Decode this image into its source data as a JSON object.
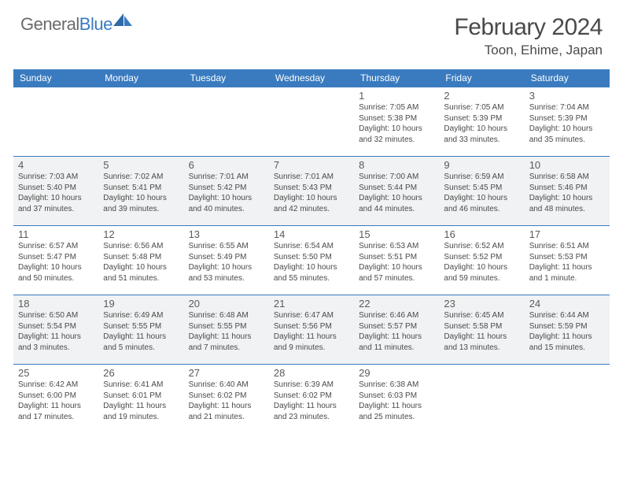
{
  "brand": {
    "general": "General",
    "blue": "Blue"
  },
  "title": {
    "month_year": "February 2024",
    "location": "Toon, Ehime, Japan"
  },
  "colors": {
    "header_bg": "#3a7bbf",
    "header_text": "#ffffff",
    "rule": "#3a7bbf",
    "shaded_bg": "#f1f2f3",
    "text": "#4a4a4a"
  },
  "day_headers": [
    "Sunday",
    "Monday",
    "Tuesday",
    "Wednesday",
    "Thursday",
    "Friday",
    "Saturday"
  ],
  "weeks": [
    {
      "shaded": false,
      "days": [
        null,
        null,
        null,
        null,
        {
          "n": "1",
          "sr": "Sunrise: 7:05 AM",
          "ss": "Sunset: 5:38 PM",
          "dl": "Daylight: 10 hours and 32 minutes."
        },
        {
          "n": "2",
          "sr": "Sunrise: 7:05 AM",
          "ss": "Sunset: 5:39 PM",
          "dl": "Daylight: 10 hours and 33 minutes."
        },
        {
          "n": "3",
          "sr": "Sunrise: 7:04 AM",
          "ss": "Sunset: 5:39 PM",
          "dl": "Daylight: 10 hours and 35 minutes."
        }
      ]
    },
    {
      "shaded": true,
      "days": [
        {
          "n": "4",
          "sr": "Sunrise: 7:03 AM",
          "ss": "Sunset: 5:40 PM",
          "dl": "Daylight: 10 hours and 37 minutes."
        },
        {
          "n": "5",
          "sr": "Sunrise: 7:02 AM",
          "ss": "Sunset: 5:41 PM",
          "dl": "Daylight: 10 hours and 39 minutes."
        },
        {
          "n": "6",
          "sr": "Sunrise: 7:01 AM",
          "ss": "Sunset: 5:42 PM",
          "dl": "Daylight: 10 hours and 40 minutes."
        },
        {
          "n": "7",
          "sr": "Sunrise: 7:01 AM",
          "ss": "Sunset: 5:43 PM",
          "dl": "Daylight: 10 hours and 42 minutes."
        },
        {
          "n": "8",
          "sr": "Sunrise: 7:00 AM",
          "ss": "Sunset: 5:44 PM",
          "dl": "Daylight: 10 hours and 44 minutes."
        },
        {
          "n": "9",
          "sr": "Sunrise: 6:59 AM",
          "ss": "Sunset: 5:45 PM",
          "dl": "Daylight: 10 hours and 46 minutes."
        },
        {
          "n": "10",
          "sr": "Sunrise: 6:58 AM",
          "ss": "Sunset: 5:46 PM",
          "dl": "Daylight: 10 hours and 48 minutes."
        }
      ]
    },
    {
      "shaded": false,
      "days": [
        {
          "n": "11",
          "sr": "Sunrise: 6:57 AM",
          "ss": "Sunset: 5:47 PM",
          "dl": "Daylight: 10 hours and 50 minutes."
        },
        {
          "n": "12",
          "sr": "Sunrise: 6:56 AM",
          "ss": "Sunset: 5:48 PM",
          "dl": "Daylight: 10 hours and 51 minutes."
        },
        {
          "n": "13",
          "sr": "Sunrise: 6:55 AM",
          "ss": "Sunset: 5:49 PM",
          "dl": "Daylight: 10 hours and 53 minutes."
        },
        {
          "n": "14",
          "sr": "Sunrise: 6:54 AM",
          "ss": "Sunset: 5:50 PM",
          "dl": "Daylight: 10 hours and 55 minutes."
        },
        {
          "n": "15",
          "sr": "Sunrise: 6:53 AM",
          "ss": "Sunset: 5:51 PM",
          "dl": "Daylight: 10 hours and 57 minutes."
        },
        {
          "n": "16",
          "sr": "Sunrise: 6:52 AM",
          "ss": "Sunset: 5:52 PM",
          "dl": "Daylight: 10 hours and 59 minutes."
        },
        {
          "n": "17",
          "sr": "Sunrise: 6:51 AM",
          "ss": "Sunset: 5:53 PM",
          "dl": "Daylight: 11 hours and 1 minute."
        }
      ]
    },
    {
      "shaded": true,
      "days": [
        {
          "n": "18",
          "sr": "Sunrise: 6:50 AM",
          "ss": "Sunset: 5:54 PM",
          "dl": "Daylight: 11 hours and 3 minutes."
        },
        {
          "n": "19",
          "sr": "Sunrise: 6:49 AM",
          "ss": "Sunset: 5:55 PM",
          "dl": "Daylight: 11 hours and 5 minutes."
        },
        {
          "n": "20",
          "sr": "Sunrise: 6:48 AM",
          "ss": "Sunset: 5:55 PM",
          "dl": "Daylight: 11 hours and 7 minutes."
        },
        {
          "n": "21",
          "sr": "Sunrise: 6:47 AM",
          "ss": "Sunset: 5:56 PM",
          "dl": "Daylight: 11 hours and 9 minutes."
        },
        {
          "n": "22",
          "sr": "Sunrise: 6:46 AM",
          "ss": "Sunset: 5:57 PM",
          "dl": "Daylight: 11 hours and 11 minutes."
        },
        {
          "n": "23",
          "sr": "Sunrise: 6:45 AM",
          "ss": "Sunset: 5:58 PM",
          "dl": "Daylight: 11 hours and 13 minutes."
        },
        {
          "n": "24",
          "sr": "Sunrise: 6:44 AM",
          "ss": "Sunset: 5:59 PM",
          "dl": "Daylight: 11 hours and 15 minutes."
        }
      ]
    },
    {
      "shaded": false,
      "days": [
        {
          "n": "25",
          "sr": "Sunrise: 6:42 AM",
          "ss": "Sunset: 6:00 PM",
          "dl": "Daylight: 11 hours and 17 minutes."
        },
        {
          "n": "26",
          "sr": "Sunrise: 6:41 AM",
          "ss": "Sunset: 6:01 PM",
          "dl": "Daylight: 11 hours and 19 minutes."
        },
        {
          "n": "27",
          "sr": "Sunrise: 6:40 AM",
          "ss": "Sunset: 6:02 PM",
          "dl": "Daylight: 11 hours and 21 minutes."
        },
        {
          "n": "28",
          "sr": "Sunrise: 6:39 AM",
          "ss": "Sunset: 6:02 PM",
          "dl": "Daylight: 11 hours and 23 minutes."
        },
        {
          "n": "29",
          "sr": "Sunrise: 6:38 AM",
          "ss": "Sunset: 6:03 PM",
          "dl": "Daylight: 11 hours and 25 minutes."
        },
        null,
        null
      ]
    }
  ]
}
